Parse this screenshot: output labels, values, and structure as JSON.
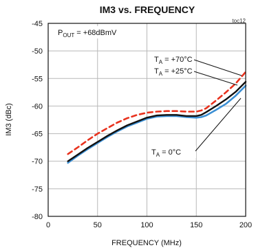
{
  "chart_data": {
    "type": "line",
    "title": "IM3 vs. FREQUENCY",
    "figure_id": "toc12",
    "xlabel": "FREQUENCY (MHz)",
    "ylabel": "IM3 (dBc)",
    "xlim": [
      0,
      200
    ],
    "ylim": [
      -80,
      -45
    ],
    "x_ticks": [
      0,
      50,
      100,
      150,
      200
    ],
    "y_ticks": [
      -45,
      -50,
      -55,
      -60,
      -65,
      -70,
      -75,
      -80
    ],
    "x_tick_labels": [
      "0",
      "50",
      "100",
      "150",
      "200"
    ],
    "y_tick_labels": [
      "-45",
      "-50",
      "-55",
      "-60",
      "-65",
      "-70",
      "-75",
      "-80"
    ],
    "grid": true,
    "annotations": {
      "pout": {
        "base": "P",
        "sub": "OUT",
        "rest": " = +68dBmV"
      },
      "t70": {
        "base": "T",
        "sub": "A",
        "rest": " = +70°C"
      },
      "t25": {
        "base": "T",
        "sub": "A",
        "rest": " = +25°C"
      },
      "t0": {
        "base": "T",
        "sub": "A",
        "rest": " = 0°C"
      }
    },
    "series": [
      {
        "key": "t70",
        "color": "#e8321e",
        "dashed": true,
        "x": [
          20,
          30,
          40,
          50,
          60,
          70,
          80,
          90,
          100,
          110,
          120,
          130,
          140,
          150,
          155,
          160,
          170,
          180,
          190,
          200
        ],
        "y": [
          -68.7,
          -67.5,
          -66.2,
          -65.0,
          -64.0,
          -63.0,
          -62.2,
          -61.6,
          -61.2,
          -61.0,
          -60.9,
          -60.9,
          -61.0,
          -61.0,
          -60.8,
          -60.4,
          -59.0,
          -57.5,
          -55.9,
          -53.8
        ]
      },
      {
        "key": "t25",
        "color": "#111111",
        "dashed": false,
        "x": [
          20,
          30,
          40,
          50,
          60,
          70,
          80,
          90,
          100,
          110,
          120,
          130,
          140,
          150,
          155,
          160,
          170,
          180,
          190,
          200
        ],
        "y": [
          -70.0,
          -68.8,
          -67.6,
          -66.5,
          -65.4,
          -64.4,
          -63.5,
          -62.8,
          -62.1,
          -61.7,
          -61.6,
          -61.6,
          -61.8,
          -61.8,
          -61.6,
          -61.1,
          -60.0,
          -58.8,
          -57.4,
          -55.6
        ]
      },
      {
        "key": "t0",
        "color": "#3b8fd4",
        "dashed": false,
        "x": [
          20,
          30,
          40,
          50,
          60,
          70,
          80,
          90,
          100,
          110,
          120,
          130,
          140,
          150,
          155,
          160,
          170,
          180,
          190,
          200
        ],
        "y": [
          -70.3,
          -69.0,
          -67.8,
          -66.7,
          -65.6,
          -64.6,
          -63.7,
          -63.0,
          -62.3,
          -61.9,
          -61.8,
          -61.8,
          -62.0,
          -62.1,
          -62.0,
          -61.7,
          -60.7,
          -59.6,
          -58.1,
          -56.3
        ]
      }
    ]
  }
}
